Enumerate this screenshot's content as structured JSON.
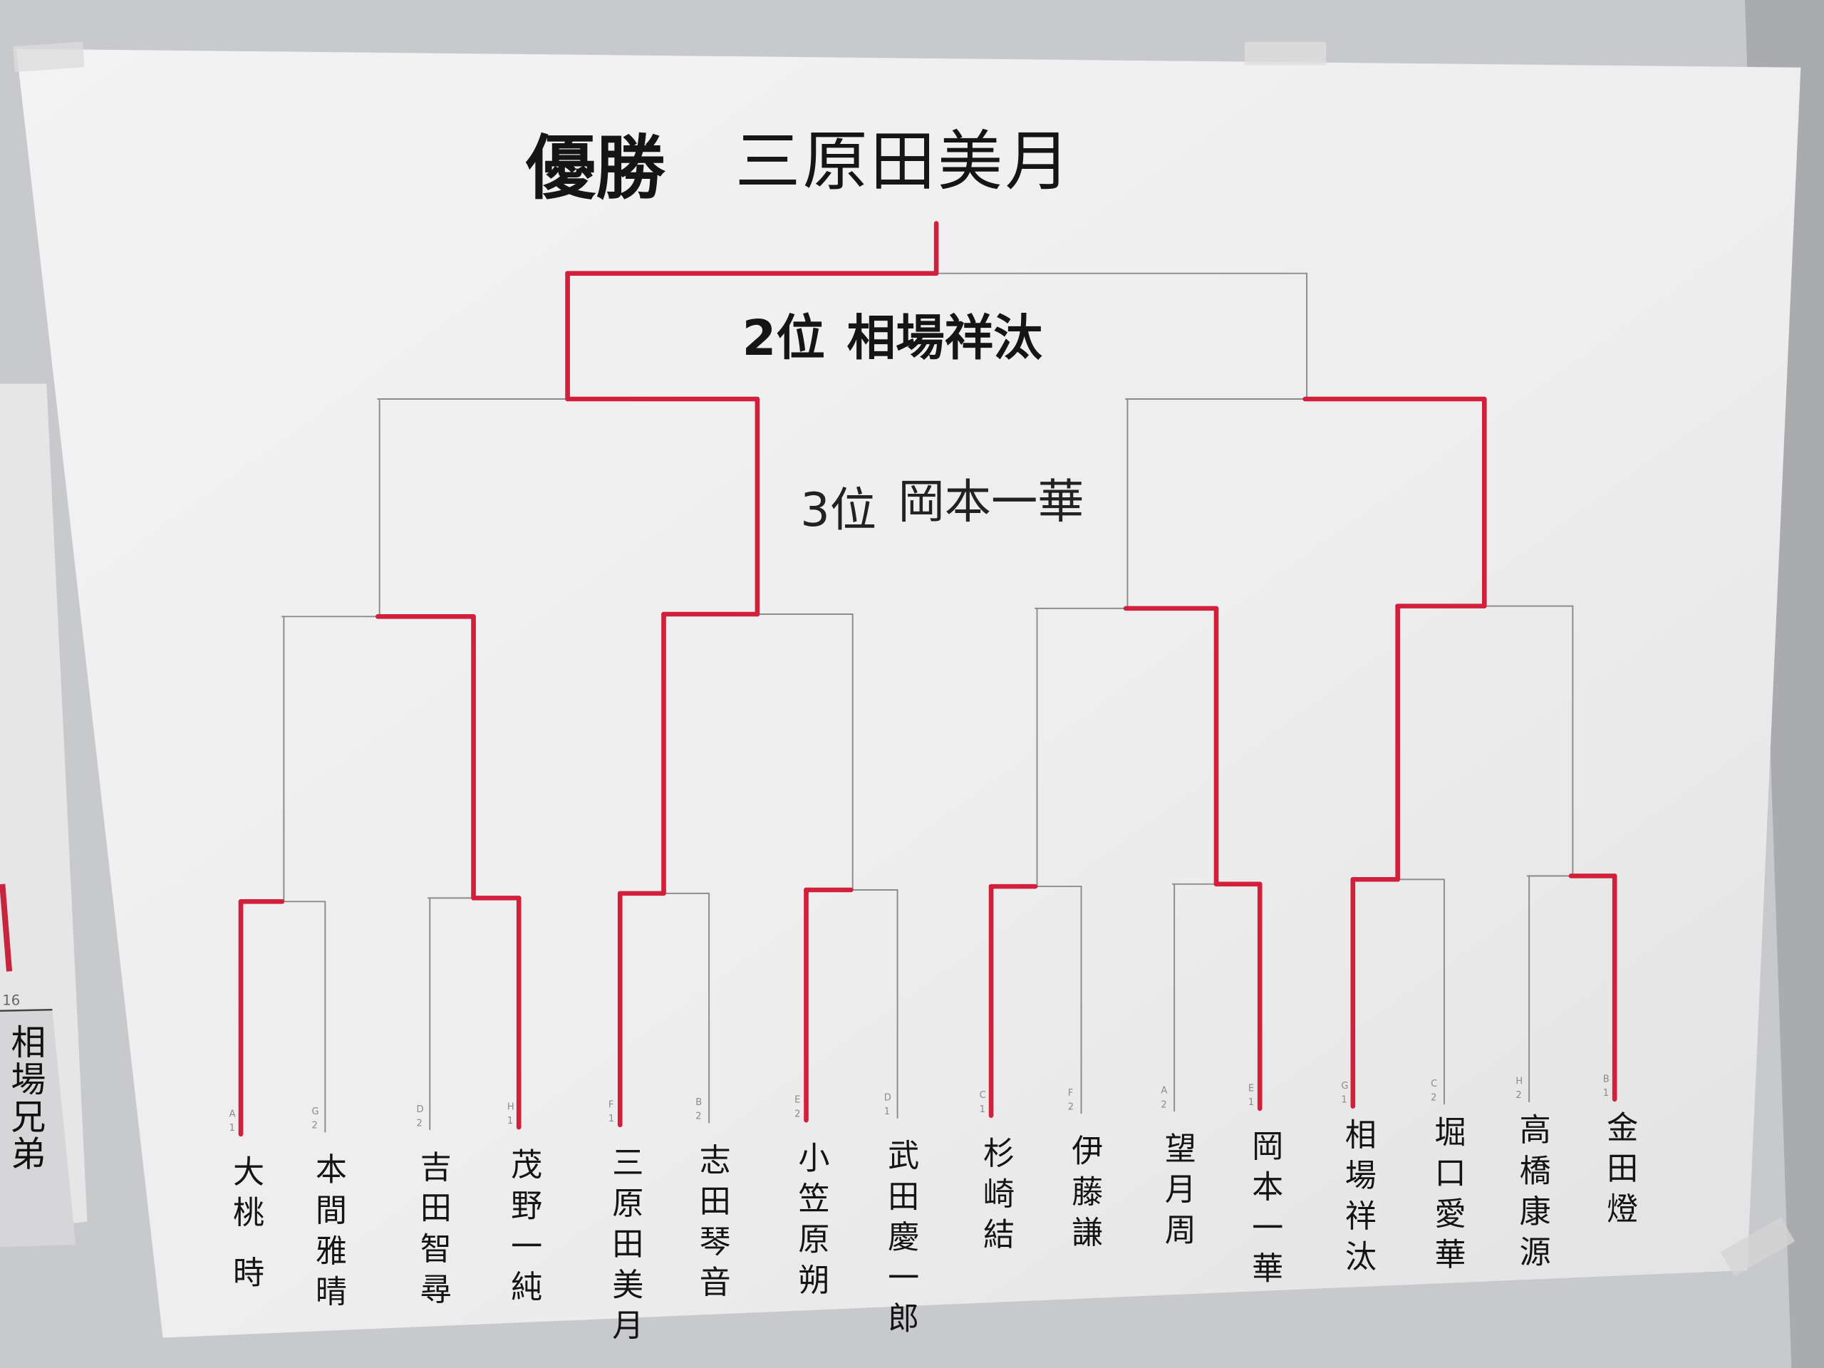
{
  "champion": {
    "label": "優勝",
    "name": "三原田美月"
  },
  "second_place": {
    "label": "2位",
    "name": "相場祥汰"
  },
  "third_place": {
    "label": "3位",
    "name": "岡本一華"
  },
  "side_sign": {
    "number": "16",
    "text": "相場兄弟"
  },
  "bracket": {
    "entrants": [
      {
        "name": "大桃 時",
        "letter": "A",
        "number": "1"
      },
      {
        "name": "本間雅晴",
        "letter": "G",
        "number": "2"
      },
      {
        "name": "吉田智尋",
        "letter": "D",
        "number": "2"
      },
      {
        "name": "茂野一純",
        "letter": "H",
        "number": "1"
      },
      {
        "name": "三原田美月",
        "letter": "F",
        "number": "1"
      },
      {
        "name": "志田琴音",
        "letter": "B",
        "number": "2"
      },
      {
        "name": "小笠原朔",
        "letter": "E",
        "number": "2"
      },
      {
        "name": "武田慶一郎",
        "letter": "D",
        "number": "1"
      },
      {
        "name": "杉崎結",
        "letter": "C",
        "number": "1"
      },
      {
        "name": "伊藤謙",
        "letter": "F",
        "number": "2"
      },
      {
        "name": "望月周",
        "letter": "A",
        "number": "2"
      },
      {
        "name": "岡本一華",
        "letter": "E",
        "number": "1"
      },
      {
        "name": "相場祥汰",
        "letter": "G",
        "number": "1"
      },
      {
        "name": "堀口愛華",
        "letter": "C",
        "number": "2"
      },
      {
        "name": "高橋康源",
        "letter": "H",
        "number": "2"
      },
      {
        "name": "金田燈",
        "letter": "B",
        "number": "1"
      }
    ],
    "winners_by_round": [
      [
        0,
        3,
        4,
        6,
        8,
        11,
        12,
        15
      ],
      [
        3,
        4,
        11,
        12
      ],
      [
        4,
        12
      ],
      [
        4
      ]
    ]
  },
  "colors": {
    "win_line": "#d21f3c",
    "bracket_line": "#8c8c8c",
    "paper": "#efefef",
    "wall": "#c4c5c8"
  }
}
